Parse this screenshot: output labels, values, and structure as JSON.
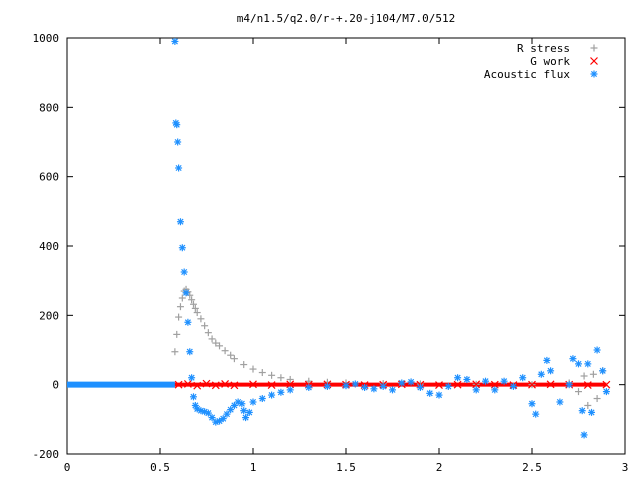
{
  "chart_data": {
    "type": "scatter",
    "title": "m4/n1.5/q2.0/r-+.20-j104/M7.0/512",
    "xlabel": "",
    "ylabel": "",
    "xlim": [
      0,
      3
    ],
    "ylim": [
      -200,
      1000
    ],
    "xticks": [
      0,
      0.5,
      1,
      1.5,
      2,
      2.5,
      3
    ],
    "xtick_labels": [
      "0",
      "0.5",
      "1",
      "1.5",
      "2",
      "2.5",
      "3"
    ],
    "yticks": [
      -200,
      0,
      200,
      400,
      600,
      800,
      1000
    ],
    "ytick_labels": [
      "-200",
      "0",
      "200",
      "400",
      "600",
      "800",
      "1000"
    ],
    "grid": false,
    "legend_position": "top-right",
    "series": [
      {
        "name": "R stress",
        "marker": "plus",
        "color": "#a0a0a0",
        "points": [
          [
            0.58,
            95
          ],
          [
            0.59,
            145
          ],
          [
            0.6,
            195
          ],
          [
            0.61,
            225
          ],
          [
            0.62,
            250
          ],
          [
            0.63,
            270
          ],
          [
            0.64,
            275
          ],
          [
            0.65,
            268
          ],
          [
            0.66,
            258
          ],
          [
            0.67,
            245
          ],
          [
            0.68,
            232
          ],
          [
            0.69,
            220
          ],
          [
            0.7,
            208
          ],
          [
            0.72,
            190
          ],
          [
            0.74,
            170
          ],
          [
            0.76,
            150
          ],
          [
            0.78,
            132
          ],
          [
            0.8,
            120
          ],
          [
            0.82,
            112
          ],
          [
            0.85,
            98
          ],
          [
            0.88,
            85
          ],
          [
            0.9,
            75
          ],
          [
            0.95,
            58
          ],
          [
            1.0,
            45
          ],
          [
            1.05,
            35
          ],
          [
            1.1,
            27
          ],
          [
            1.15,
            20
          ],
          [
            1.2,
            15
          ],
          [
            1.3,
            10
          ],
          [
            1.4,
            7
          ],
          [
            1.5,
            5
          ],
          [
            1.7,
            3
          ],
          [
            1.9,
            2
          ],
          [
            2.2,
            1
          ],
          [
            2.5,
            0
          ],
          [
            2.7,
            5
          ],
          [
            2.75,
            -20
          ],
          [
            2.78,
            25
          ],
          [
            2.8,
            -60
          ],
          [
            2.83,
            30
          ],
          [
            2.85,
            -40
          ],
          [
            2.88,
            40
          ]
        ]
      },
      {
        "name": "G work",
        "marker": "cross",
        "color": "#ff0000",
        "points": [
          [
            0.6,
            0
          ],
          [
            0.65,
            2
          ],
          [
            0.7,
            -3
          ],
          [
            0.75,
            3
          ],
          [
            0.8,
            -2
          ],
          [
            0.85,
            2
          ],
          [
            0.9,
            -2
          ],
          [
            1.0,
            1
          ],
          [
            1.1,
            -1
          ],
          [
            1.2,
            1
          ],
          [
            1.3,
            0
          ],
          [
            1.4,
            1
          ],
          [
            1.5,
            0
          ],
          [
            1.6,
            -1
          ],
          [
            1.7,
            0
          ],
          [
            1.8,
            1
          ],
          [
            1.9,
            0
          ],
          [
            2.0,
            -1
          ],
          [
            2.1,
            0
          ],
          [
            2.2,
            1
          ],
          [
            2.3,
            0
          ],
          [
            2.4,
            -1
          ],
          [
            2.5,
            0
          ],
          [
            2.6,
            1
          ],
          [
            2.7,
            0
          ],
          [
            2.8,
            -1
          ],
          [
            2.9,
            0
          ]
        ]
      },
      {
        "name": "Acoustic flux",
        "marker": "star",
        "color": "#1e90ff",
        "points": [
          [
            0.58,
            990
          ],
          [
            0.585,
            755
          ],
          [
            0.59,
            750
          ],
          [
            0.595,
            700
          ],
          [
            0.6,
            625
          ],
          [
            0.61,
            470
          ],
          [
            0.62,
            395
          ],
          [
            0.63,
            325
          ],
          [
            0.64,
            265
          ],
          [
            0.65,
            180
          ],
          [
            0.66,
            95
          ],
          [
            0.67,
            20
          ],
          [
            0.68,
            -35
          ],
          [
            0.69,
            -60
          ],
          [
            0.7,
            -70
          ],
          [
            0.72,
            -75
          ],
          [
            0.74,
            -78
          ],
          [
            0.76,
            -82
          ],
          [
            0.78,
            -95
          ],
          [
            0.8,
            -108
          ],
          [
            0.82,
            -105
          ],
          [
            0.84,
            -98
          ],
          [
            0.86,
            -85
          ],
          [
            0.88,
            -72
          ],
          [
            0.9,
            -60
          ],
          [
            0.92,
            -50
          ],
          [
            0.94,
            -55
          ],
          [
            0.95,
            -75
          ],
          [
            0.96,
            -95
          ],
          [
            0.98,
            -80
          ],
          [
            1.0,
            -50
          ],
          [
            1.05,
            -40
          ],
          [
            1.1,
            -30
          ],
          [
            1.15,
            -22
          ],
          [
            1.2,
            -15
          ],
          [
            1.3,
            -8
          ],
          [
            1.4,
            -5
          ],
          [
            1.5,
            -3
          ],
          [
            1.55,
            2
          ],
          [
            1.6,
            -8
          ],
          [
            1.65,
            -12
          ],
          [
            1.7,
            -5
          ],
          [
            1.75,
            -15
          ],
          [
            1.8,
            5
          ],
          [
            1.85,
            8
          ],
          [
            1.9,
            -8
          ],
          [
            1.95,
            -25
          ],
          [
            2.0,
            -30
          ],
          [
            2.05,
            -5
          ],
          [
            2.1,
            20
          ],
          [
            2.15,
            15
          ],
          [
            2.2,
            -15
          ],
          [
            2.25,
            10
          ],
          [
            2.3,
            -15
          ],
          [
            2.35,
            10
          ],
          [
            2.4,
            -5
          ],
          [
            2.45,
            20
          ],
          [
            2.5,
            -55
          ],
          [
            2.52,
            -85
          ],
          [
            2.55,
            30
          ],
          [
            2.58,
            70
          ],
          [
            2.6,
            40
          ],
          [
            2.65,
            -50
          ],
          [
            2.7,
            0
          ],
          [
            2.72,
            75
          ],
          [
            2.75,
            60
          ],
          [
            2.77,
            -75
          ],
          [
            2.78,
            -145
          ],
          [
            2.8,
            60
          ],
          [
            2.82,
            -80
          ],
          [
            2.85,
            100
          ],
          [
            2.88,
            40
          ],
          [
            2.9,
            -20
          ]
        ]
      }
    ]
  }
}
